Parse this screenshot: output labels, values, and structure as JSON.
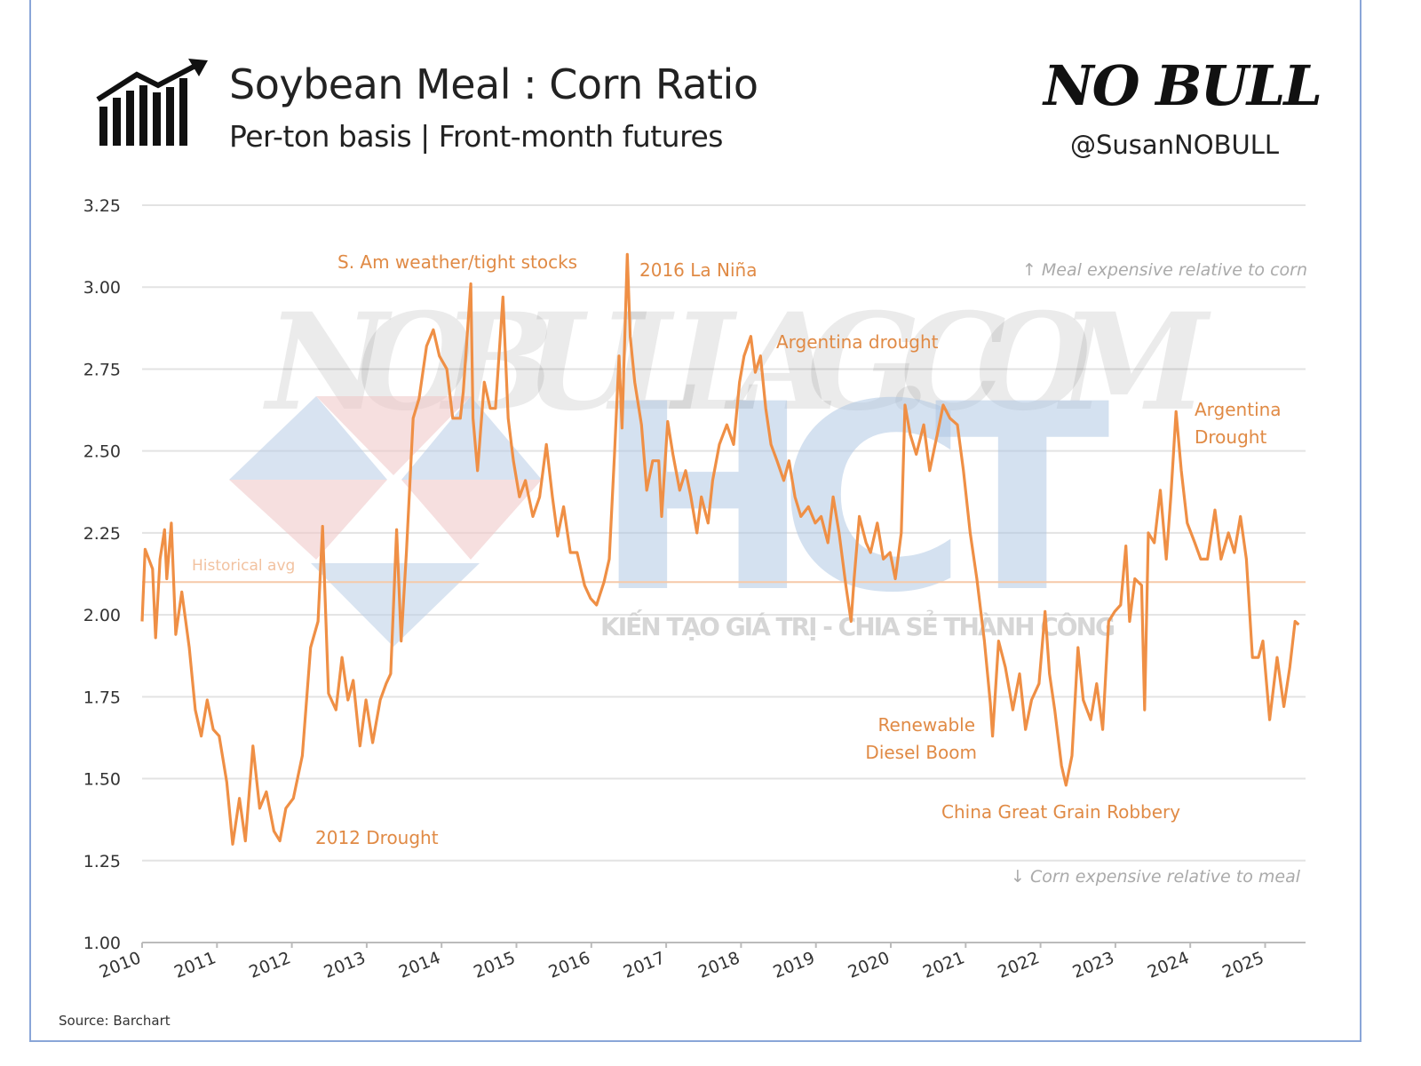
{
  "header": {
    "title": "Soybean Meal : Corn Ratio",
    "subtitle": "Per-ton basis | Front-month futures",
    "brand": "NO BULL",
    "handle": "@SusanNOBULL",
    "logo_icon": "bar-chart-trend-up-icon"
  },
  "watermarks": {
    "site": "NOBULLAG.COM",
    "logo": "HCT",
    "tagline": "KIẾN TẠO GIÁ TRỊ - CHIA SẺ THÀNH CÔNG"
  },
  "source": "Source: Barchart",
  "colors": {
    "line": "#ef8f45",
    "annotation": "#e08a45",
    "avg": "#f6c9a8",
    "grid": "#e3e3e3",
    "frame": "#8aa6d8"
  },
  "chart_data": {
    "type": "line",
    "title": "Soybean Meal : Corn Ratio",
    "subtitle": "Per-ton basis | Front-month futures",
    "xlabel": "",
    "ylabel": "",
    "xlim": [
      2010,
      2025.55
    ],
    "ylim": [
      1.0,
      3.25
    ],
    "grid": true,
    "x_ticks": [
      "2010",
      "2011",
      "2012",
      "2013",
      "2014",
      "2015",
      "2016",
      "2017",
      "2018",
      "2019",
      "2020",
      "2021",
      "2022",
      "2023",
      "2024",
      "2025"
    ],
    "y_ticks": [
      "1.00",
      "1.25",
      "1.50",
      "1.75",
      "2.00",
      "2.25",
      "2.50",
      "2.75",
      "3.00",
      "3.25"
    ],
    "reference_line": {
      "label": "Historical avg",
      "value": 2.1
    },
    "direction_notes": {
      "top": "↑ Meal expensive relative to corn",
      "bottom": "↓ Corn expensive relative to meal"
    },
    "annotations": [
      {
        "text": "S. Am weather/tight stocks",
        "x": 2014.3,
        "y": 3.0
      },
      {
        "text": "2016 La Niña",
        "x": 2016.48,
        "y": 3.1
      },
      {
        "text": "Argentina drought",
        "x": 2018.13,
        "y": 2.85
      },
      {
        "text": "Argentina Drought",
        "x": 2023.81,
        "y": 2.62
      },
      {
        "text": "Renewable Diesel Boom",
        "x": 2021.36,
        "y": 1.63
      },
      {
        "text": "China Great Grain Robbery",
        "x": 2022.34,
        "y": 1.48
      },
      {
        "text": "2012 Drought",
        "x": 2011.5,
        "y": 1.3
      }
    ],
    "series": [
      {
        "x": [
          2010.0,
          2010.04,
          2010.14,
          2010.18,
          2010.24,
          2010.3,
          2010.33,
          2010.39,
          2010.45,
          2010.53,
          2010.63,
          2010.71,
          2010.79,
          2010.87,
          2010.95,
          2011.03,
          2011.13,
          2011.21,
          2011.3,
          2011.38,
          2011.48,
          2011.57,
          2011.66,
          2011.76,
          2011.84,
          2011.92,
          2012.02,
          2012.14,
          2012.25,
          2012.35,
          2012.41,
          2012.49,
          2012.59,
          2012.67,
          2012.75,
          2012.82,
          2012.91,
          2012.99,
          2013.08,
          2013.18,
          2013.26,
          2013.32,
          2013.4,
          2013.46,
          2013.53,
          2013.62,
          2013.7,
          2013.8,
          2013.89,
          2013.97,
          2014.07,
          2014.15,
          2014.25,
          2014.29,
          2014.39,
          2014.42,
          2014.48,
          2014.57,
          2014.65,
          2014.72,
          2014.82,
          2014.89,
          2014.96,
          2015.04,
          2015.12,
          2015.22,
          2015.31,
          2015.4,
          2015.48,
          2015.55,
          2015.63,
          2015.72,
          2015.81,
          2015.91,
          2015.99,
          2016.07,
          2016.17,
          2016.24,
          2016.31,
          2016.37,
          2016.41,
          2016.48,
          2016.52,
          2016.58,
          2016.67,
          2016.74,
          2016.82,
          2016.9,
          2016.94,
          2017.02,
          2017.09,
          2017.18,
          2017.26,
          2017.33,
          2017.41,
          2017.47,
          2017.56,
          2017.62,
          2017.71,
          2017.81,
          2017.9,
          2017.98,
          2018.04,
          2018.13,
          2018.19,
          2018.26,
          2018.33,
          2018.4,
          2018.48,
          2018.57,
          2018.64,
          2018.72,
          2018.8,
          2018.9,
          2018.99,
          2019.07,
          2019.16,
          2019.23,
          2019.31,
          2019.4,
          2019.47,
          2019.51,
          2019.58,
          2019.67,
          2019.73,
          2019.82,
          2019.9,
          2019.99,
          2020.06,
          2020.14,
          2020.19,
          2020.26,
          2020.34,
          2020.44,
          2020.52,
          2020.62,
          2020.7,
          2020.79,
          2020.89,
          2020.97,
          2021.06,
          2021.15,
          2021.25,
          2021.33,
          2021.36,
          2021.44,
          2021.53,
          2021.63,
          2021.72,
          2021.8,
          2021.88,
          2021.98,
          2022.06,
          2022.12,
          2022.19,
          2022.28,
          2022.34,
          2022.42,
          2022.5,
          2022.57,
          2022.67,
          2022.75,
          2022.83,
          2022.91,
          2022.99,
          2023.07,
          2023.14,
          2023.19,
          2023.26,
          2023.35,
          2023.39,
          2023.44,
          2023.52,
          2023.6,
          2023.68,
          2023.74,
          2023.81,
          2023.88,
          2023.96,
          2024.06,
          2024.14,
          2024.23,
          2024.33,
          2024.41,
          2024.51,
          2024.59,
          2024.67,
          2024.75,
          2024.83,
          2024.91,
          2024.97,
          2025.06,
          2025.16,
          2025.25,
          2025.33,
          2025.4,
          2025.45
        ],
        "y": [
          1.98,
          2.2,
          2.14,
          1.93,
          2.17,
          2.26,
          2.11,
          2.28,
          1.94,
          2.07,
          1.9,
          1.71,
          1.63,
          1.74,
          1.65,
          1.63,
          1.49,
          1.3,
          1.44,
          1.31,
          1.6,
          1.41,
          1.46,
          1.34,
          1.31,
          1.41,
          1.44,
          1.57,
          1.9,
          1.98,
          2.27,
          1.76,
          1.71,
          1.87,
          1.74,
          1.8,
          1.6,
          1.74,
          1.61,
          1.74,
          1.79,
          1.82,
          2.26,
          1.92,
          2.19,
          2.6,
          2.66,
          2.82,
          2.87,
          2.79,
          2.75,
          2.6,
          2.6,
          2.68,
          3.01,
          2.6,
          2.44,
          2.71,
          2.63,
          2.63,
          2.97,
          2.6,
          2.47,
          2.36,
          2.41,
          2.3,
          2.36,
          2.52,
          2.36,
          2.24,
          2.33,
          2.19,
          2.19,
          2.09,
          2.05,
          2.03,
          2.1,
          2.17,
          2.49,
          2.79,
          2.57,
          3.1,
          2.85,
          2.71,
          2.58,
          2.38,
          2.47,
          2.47,
          2.3,
          2.59,
          2.49,
          2.38,
          2.44,
          2.36,
          2.25,
          2.36,
          2.28,
          2.41,
          2.52,
          2.58,
          2.52,
          2.71,
          2.79,
          2.85,
          2.74,
          2.79,
          2.63,
          2.52,
          2.47,
          2.41,
          2.47,
          2.36,
          2.3,
          2.33,
          2.28,
          2.3,
          2.22,
          2.36,
          2.25,
          2.09,
          1.98,
          2.11,
          2.3,
          2.22,
          2.19,
          2.28,
          2.17,
          2.19,
          2.11,
          2.25,
          2.64,
          2.55,
          2.49,
          2.58,
          2.44,
          2.55,
          2.64,
          2.6,
          2.58,
          2.44,
          2.25,
          2.11,
          1.92,
          1.73,
          1.63,
          1.92,
          1.84,
          1.71,
          1.82,
          1.65,
          1.74,
          1.79,
          2.01,
          1.82,
          1.71,
          1.54,
          1.48,
          1.57,
          1.9,
          1.74,
          1.68,
          1.79,
          1.65,
          1.98,
          2.01,
          2.03,
          2.21,
          1.98,
          2.11,
          2.09,
          1.71,
          2.25,
          2.22,
          2.38,
          2.17,
          2.36,
          2.62,
          2.44,
          2.28,
          2.22,
          2.17,
          2.17,
          2.32,
          2.17,
          2.25,
          2.19,
          2.3,
          2.17,
          1.87,
          1.87,
          1.92,
          1.68,
          1.87,
          1.72,
          1.84,
          1.98,
          1.97
        ]
      }
    ]
  }
}
